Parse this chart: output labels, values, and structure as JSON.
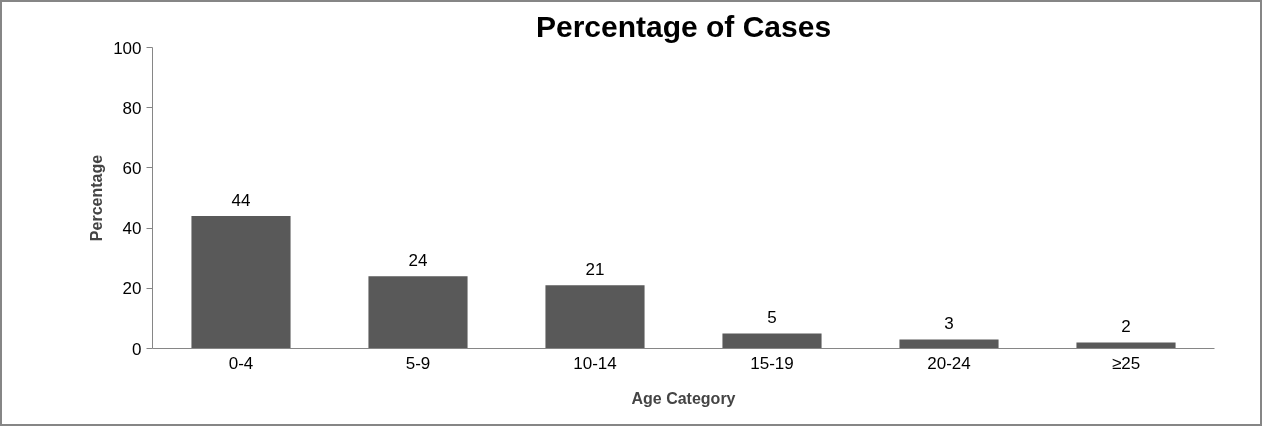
{
  "chart_data": {
    "type": "bar",
    "title": "Percentage of Cases",
    "xlabel": "Age Category",
    "ylabel": "Percentage",
    "categories": [
      "0-4",
      "5-9",
      "10-14",
      "15-19",
      "20-24",
      "≥25"
    ],
    "values": [
      44,
      24,
      21,
      5,
      3,
      2
    ],
    "color": "#595959",
    "ylim": [
      0,
      100
    ],
    "yticks": [
      0,
      20,
      40,
      60,
      80,
      100
    ],
    "grid": false,
    "data_labels": true
  }
}
